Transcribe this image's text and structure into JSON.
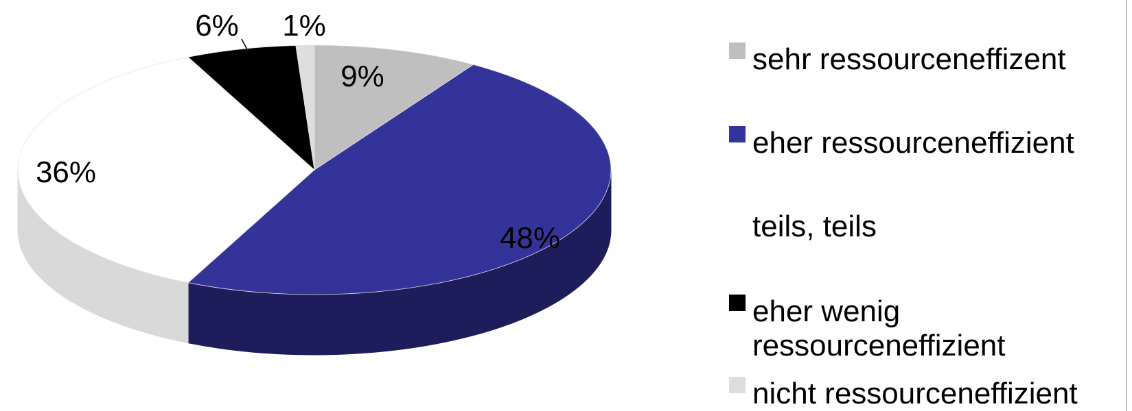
{
  "chart_data": {
    "type": "pie",
    "three_d": true,
    "title": "",
    "legend_position": "right",
    "slices": [
      {
        "label": "sehr ressourceneffizent",
        "value": 9,
        "display": "9%",
        "color": "#bfbfbf",
        "side_color": "#8c8c8c"
      },
      {
        "label": "eher ressourceneffizient",
        "value": 48,
        "display": "48%",
        "color": "#333399",
        "side_color": "#1d1d5c"
      },
      {
        "label": "teils, teils",
        "value": 36,
        "display": "36%",
        "color": "#ffffff",
        "side_color": "#d9d9d9"
      },
      {
        "label": "eher wenig ressourceneffizient",
        "value": 6,
        "display": "6%",
        "color": "#000000",
        "side_color": "#000000"
      },
      {
        "label": "nicht ressourceneffizient",
        "value": 1,
        "display": "1%",
        "color": "#dedede",
        "side_color": "#b5b5b5"
      }
    ]
  },
  "legend": {
    "items": [
      {
        "label": "sehr ressourceneffizent",
        "color": "#bfbfbf"
      },
      {
        "label": "eher ressourceneffizient",
        "color": "#333399"
      },
      {
        "label": "teils, teils",
        "color": "#ffffff"
      },
      {
        "label": "eher wenig ressourceneffizient",
        "color": "#000000"
      },
      {
        "label": "nicht ressourceneffizient",
        "color": "#dedede"
      }
    ]
  }
}
